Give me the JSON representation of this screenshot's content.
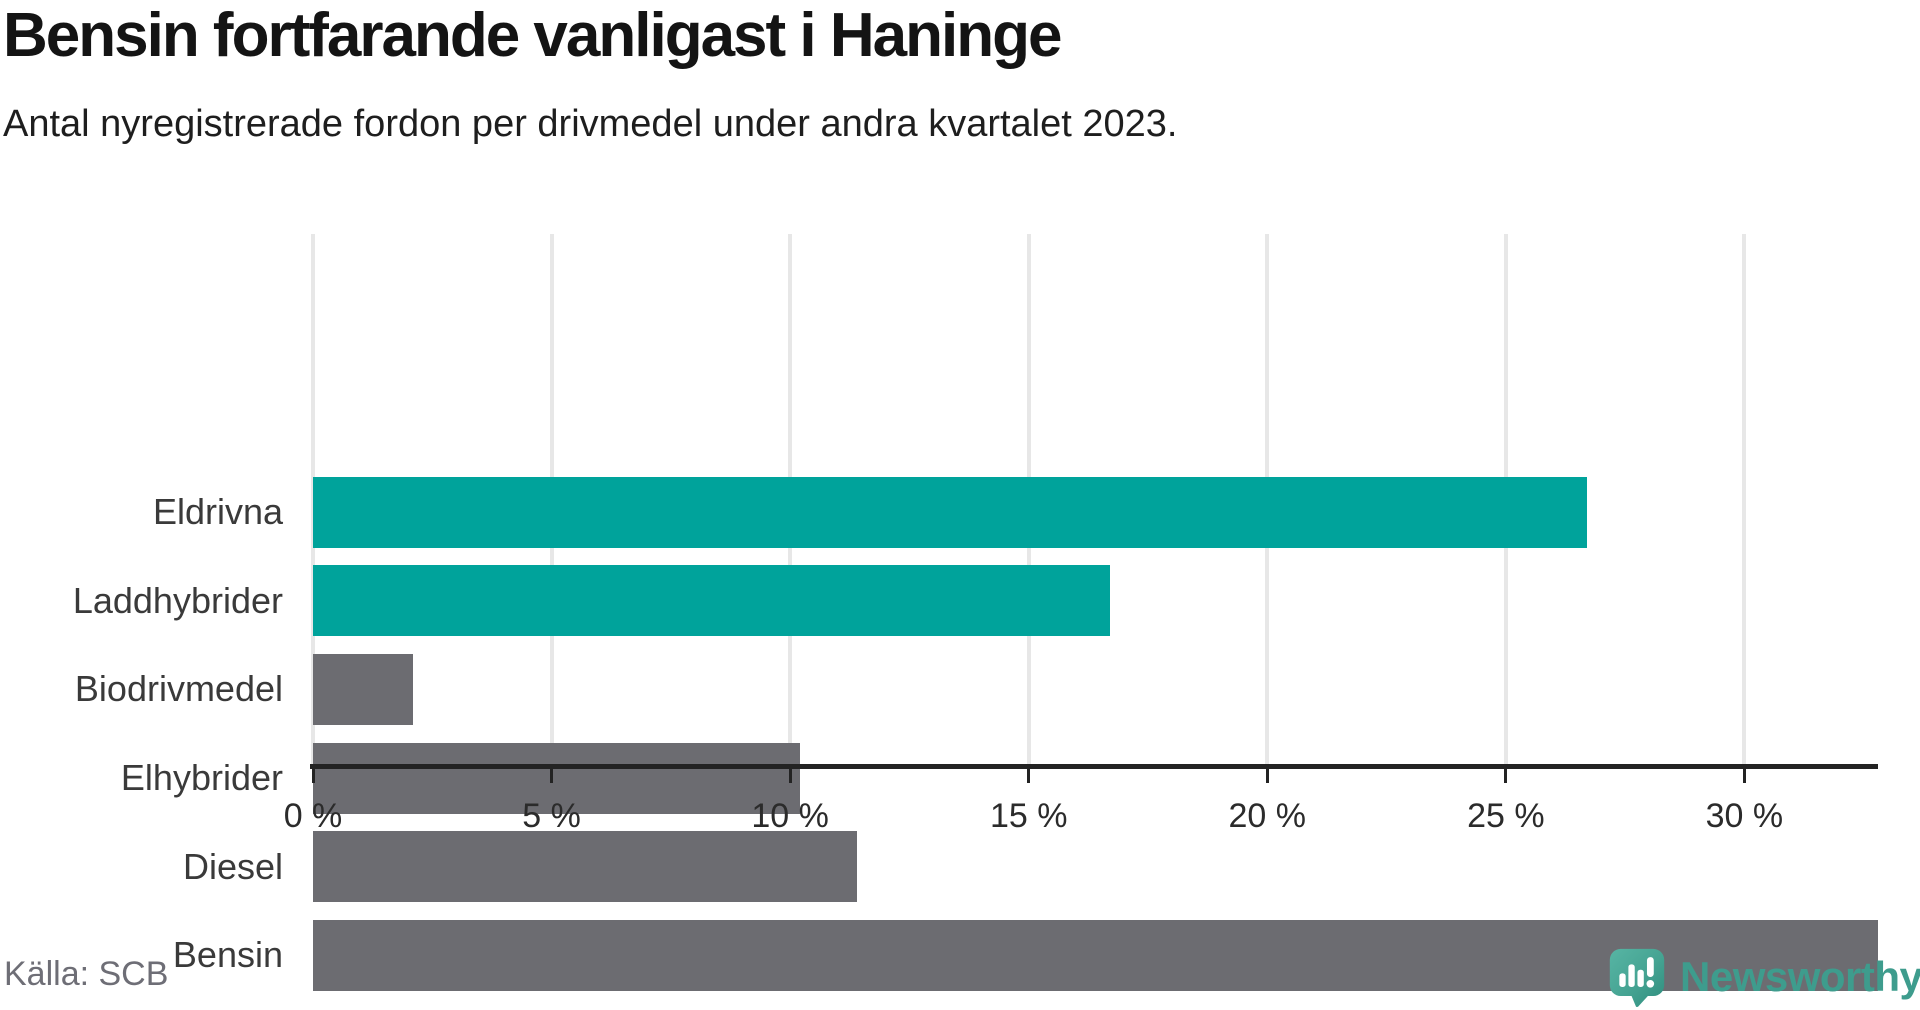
{
  "header": {
    "title": "Bensin fortfarande vanligast i Haninge",
    "subtitle": "Antal nyregistrerade fordon per drivmedel under andra kvartalet 2023."
  },
  "chart_data": {
    "type": "bar",
    "orientation": "horizontal",
    "title": "Bensin fortfarande vanligast i Haninge",
    "subtitle": "Antal nyregistrerade fordon per drivmedel under andra kvartalet 2023.",
    "categories": [
      "Eldrivna",
      "Laddhybrider",
      "Biodrivmedel",
      "Elhybrider",
      "Diesel",
      "Bensin"
    ],
    "values": [
      26.7,
      16.7,
      2.1,
      10.2,
      11.4,
      32.8
    ],
    "unit": "%",
    "xlim": [
      0,
      32.8
    ],
    "x_ticks": [
      0,
      5,
      10,
      15,
      20,
      25,
      30
    ],
    "x_tick_labels": [
      "0 %",
      "5 %",
      "10 %",
      "15 %",
      "20 %",
      "25 %",
      "30 %"
    ],
    "bar_colors": [
      "#00a39b",
      "#00a39b",
      "#6c6c71",
      "#6c6c71",
      "#6c6c71",
      "#6c6c71"
    ],
    "highlight_color": "#00a39b",
    "default_color": "#6c6c71",
    "grid": true,
    "legend": false,
    "xlabel": "",
    "ylabel": ""
  },
  "footer": {
    "source": "Källa: SCB",
    "brand": "Newsworthy",
    "logo_icon": "newsworthy-pin-bar-chart-icon"
  },
  "colors": {
    "axis": "#232323",
    "gridline": "#e7e7e7",
    "category_label": "#3a3a3a",
    "tick_label": "#2b2b2b",
    "source_text": "#6e6e76",
    "brand_teal": "#3e9c8d",
    "logo_gradient_light": "#57b5a4",
    "logo_gradient_dark": "#2f8c7d"
  }
}
